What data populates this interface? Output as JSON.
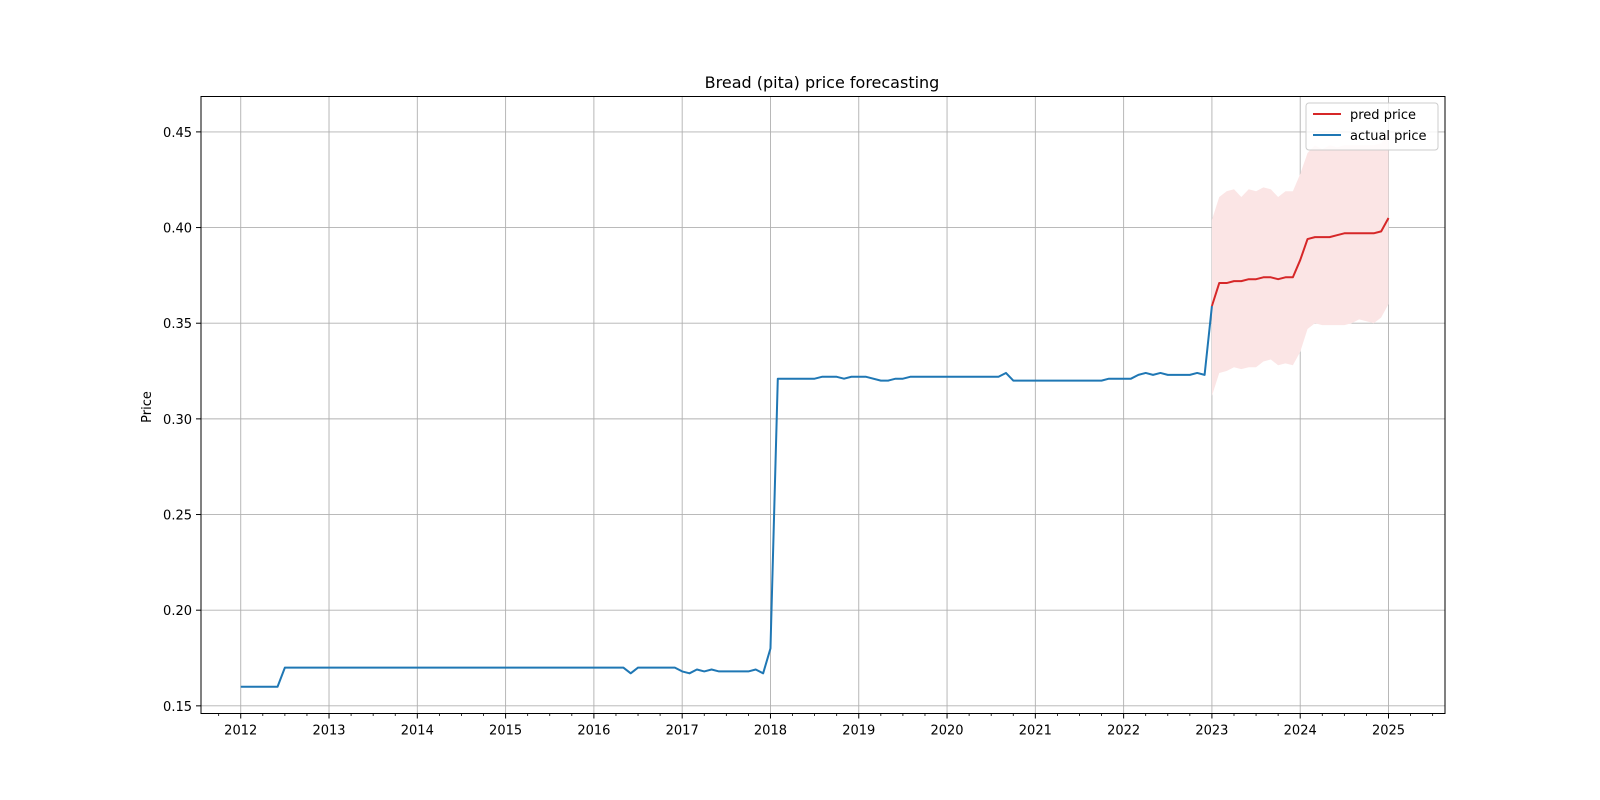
{
  "chart_data": {
    "type": "line",
    "title": "Bread (pita) price forecasting",
    "xlabel": "",
    "ylabel": "Price",
    "xlim": [
      2011.55,
      2025.64
    ],
    "ylim": [
      0.146,
      0.4685
    ],
    "x_ticks": [
      "2012",
      "2013",
      "2014",
      "2015",
      "2016",
      "2017",
      "2018",
      "2019",
      "2020",
      "2021",
      "2022",
      "2023",
      "2024",
      "2025"
    ],
    "y_ticks": [
      "0.15",
      "0.20",
      "0.25",
      "0.30",
      "0.35",
      "0.40",
      "0.45"
    ],
    "grid": true,
    "legend_position": "top-right",
    "series": [
      {
        "name": "pred price",
        "color": "#d62728",
        "x": [
          2023.0,
          2023.083,
          2023.167,
          2023.25,
          2023.333,
          2023.417,
          2023.5,
          2023.583,
          2023.667,
          2023.75,
          2023.833,
          2023.917,
          2024.0,
          2024.083,
          2024.167,
          2024.25,
          2024.333,
          2024.417,
          2024.5,
          2024.583,
          2024.667,
          2024.75,
          2024.833,
          2024.917,
          2025.0
        ],
        "y": [
          0.359,
          0.371,
          0.371,
          0.372,
          0.372,
          0.373,
          0.373,
          0.374,
          0.374,
          0.373,
          0.374,
          0.374,
          0.383,
          0.394,
          0.395,
          0.395,
          0.395,
          0.396,
          0.397,
          0.397,
          0.397,
          0.397,
          0.397,
          0.398,
          0.405
        ]
      },
      {
        "name": "actual price",
        "color": "#1f77b4",
        "x": [
          2012.0,
          2012.417,
          2012.5,
          2016.333,
          2016.417,
          2016.5,
          2016.917,
          2017.0,
          2017.083,
          2017.167,
          2017.25,
          2017.333,
          2017.417,
          2017.5,
          2017.75,
          2017.833,
          2017.917,
          2018.0,
          2018.083,
          2018.5,
          2018.583,
          2018.75,
          2018.833,
          2018.917,
          2019.083,
          2019.25,
          2019.333,
          2019.417,
          2019.5,
          2019.583,
          2020.583,
          2020.667,
          2020.75,
          2021.75,
          2021.833,
          2022.083,
          2022.167,
          2022.25,
          2022.333,
          2022.417,
          2022.5,
          2022.75,
          2022.833,
          2022.917,
          2023.0
        ],
        "y": [
          0.16,
          0.16,
          0.17,
          0.17,
          0.167,
          0.17,
          0.17,
          0.168,
          0.167,
          0.169,
          0.168,
          0.169,
          0.168,
          0.168,
          0.168,
          0.169,
          0.167,
          0.18,
          0.321,
          0.321,
          0.322,
          0.322,
          0.321,
          0.322,
          0.322,
          0.32,
          0.32,
          0.321,
          0.321,
          0.322,
          0.322,
          0.324,
          0.32,
          0.32,
          0.321,
          0.321,
          0.323,
          0.324,
          0.323,
          0.324,
          0.323,
          0.323,
          0.324,
          0.323,
          0.359
        ]
      }
    ],
    "confidence_band": {
      "color": "#fbe5e5",
      "x": [
        2023.0,
        2023.083,
        2023.167,
        2023.25,
        2023.333,
        2023.417,
        2023.5,
        2023.583,
        2023.667,
        2023.75,
        2023.833,
        2023.917,
        2024.0,
        2024.083,
        2024.167,
        2024.25,
        2024.333,
        2024.417,
        2024.5,
        2024.583,
        2024.667,
        2024.75,
        2024.833,
        2024.917,
        2025.0
      ],
      "upper": [
        0.404,
        0.416,
        0.419,
        0.42,
        0.416,
        0.42,
        0.419,
        0.421,
        0.42,
        0.416,
        0.419,
        0.419,
        0.428,
        0.439,
        0.443,
        0.441,
        0.443,
        0.442,
        0.443,
        0.443,
        0.443,
        0.443,
        0.443,
        0.444,
        0.45
      ],
      "lower": [
        0.312,
        0.324,
        0.325,
        0.327,
        0.326,
        0.327,
        0.327,
        0.33,
        0.331,
        0.328,
        0.329,
        0.328,
        0.335,
        0.347,
        0.35,
        0.349,
        0.349,
        0.349,
        0.349,
        0.35,
        0.352,
        0.351,
        0.35,
        0.353,
        0.36
      ]
    }
  }
}
